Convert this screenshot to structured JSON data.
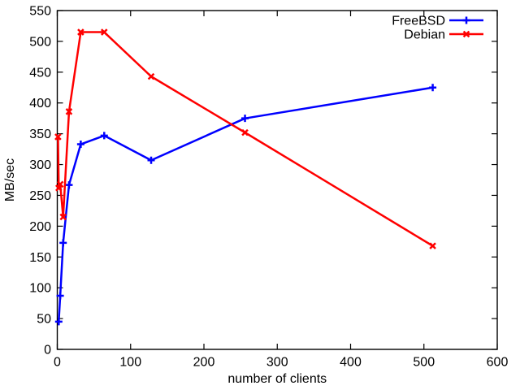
{
  "chart_data": {
    "type": "line",
    "title": "",
    "xlabel": "number of clients",
    "ylabel": "MB/sec",
    "xlim": [
      0,
      600
    ],
    "ylim": [
      0,
      550
    ],
    "xticks": [
      0,
      100,
      200,
      300,
      400,
      500,
      600
    ],
    "yticks": [
      0,
      50,
      100,
      150,
      200,
      250,
      300,
      350,
      400,
      450,
      500,
      550
    ],
    "grid": false,
    "legend_position": "top-right-inside",
    "series": [
      {
        "name": "FreeBSD",
        "color": "#0000ff",
        "marker": "plus",
        "points": [
          [
            2,
            45
          ],
          [
            4,
            87
          ],
          [
            8,
            173
          ],
          [
            16,
            267
          ],
          [
            32,
            333
          ],
          [
            64,
            347
          ],
          [
            128,
            307
          ],
          [
            256,
            375
          ],
          [
            512,
            425
          ]
        ]
      },
      {
        "name": "Debian",
        "color": "#ff0000",
        "marker": "x",
        "points": [
          [
            1,
            345
          ],
          [
            2,
            262
          ],
          [
            4,
            268
          ],
          [
            8,
            215
          ],
          [
            16,
            386
          ],
          [
            32,
            515
          ],
          [
            64,
            515
          ],
          [
            128,
            443
          ],
          [
            256,
            352
          ],
          [
            512,
            168
          ]
        ]
      }
    ]
  }
}
